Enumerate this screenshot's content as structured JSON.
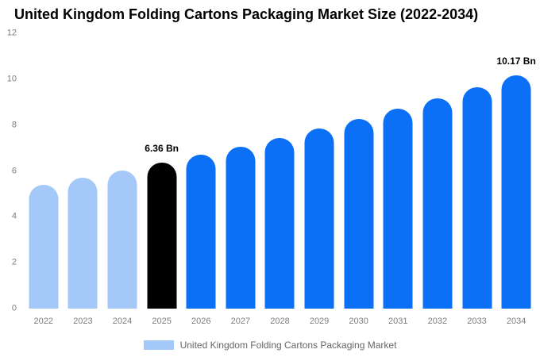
{
  "title": "United Kingdom Folding Cartons Packaging Market Size (2022-2034)",
  "legend": {
    "label": "United Kingdom Folding Cartons Packaging Market"
  },
  "colors": {
    "light": "#A4C9F8",
    "blue": "#0B70F5",
    "black": "#000000",
    "axis_text": "#7d7d7d"
  },
  "chart_data": {
    "type": "bar",
    "title": "United Kingdom Folding Cartons Packaging Market Size (2022-2034)",
    "categories": [
      "2022",
      "2023",
      "2024",
      "2025",
      "2026",
      "2027",
      "2028",
      "2029",
      "2030",
      "2031",
      "2032",
      "2033",
      "2034"
    ],
    "values": [
      5.4,
      5.7,
      6.01,
      6.36,
      6.7,
      7.06,
      7.44,
      7.84,
      8.26,
      8.7,
      9.17,
      9.66,
      10.17
    ],
    "unit": "Bn",
    "xlabel": "",
    "ylabel": "",
    "ylim": [
      0,
      12
    ],
    "yticks": [
      0,
      2,
      4,
      6,
      8,
      10,
      12
    ],
    "grid": false,
    "legend_position": "bottom",
    "bar_colors": [
      "light",
      "light",
      "light",
      "black",
      "blue",
      "blue",
      "blue",
      "blue",
      "blue",
      "blue",
      "blue",
      "blue",
      "blue"
    ],
    "annotations": [
      {
        "index": 3,
        "text": "6.36 Bn"
      },
      {
        "index": 12,
        "text": "10.17 Bn"
      }
    ]
  }
}
